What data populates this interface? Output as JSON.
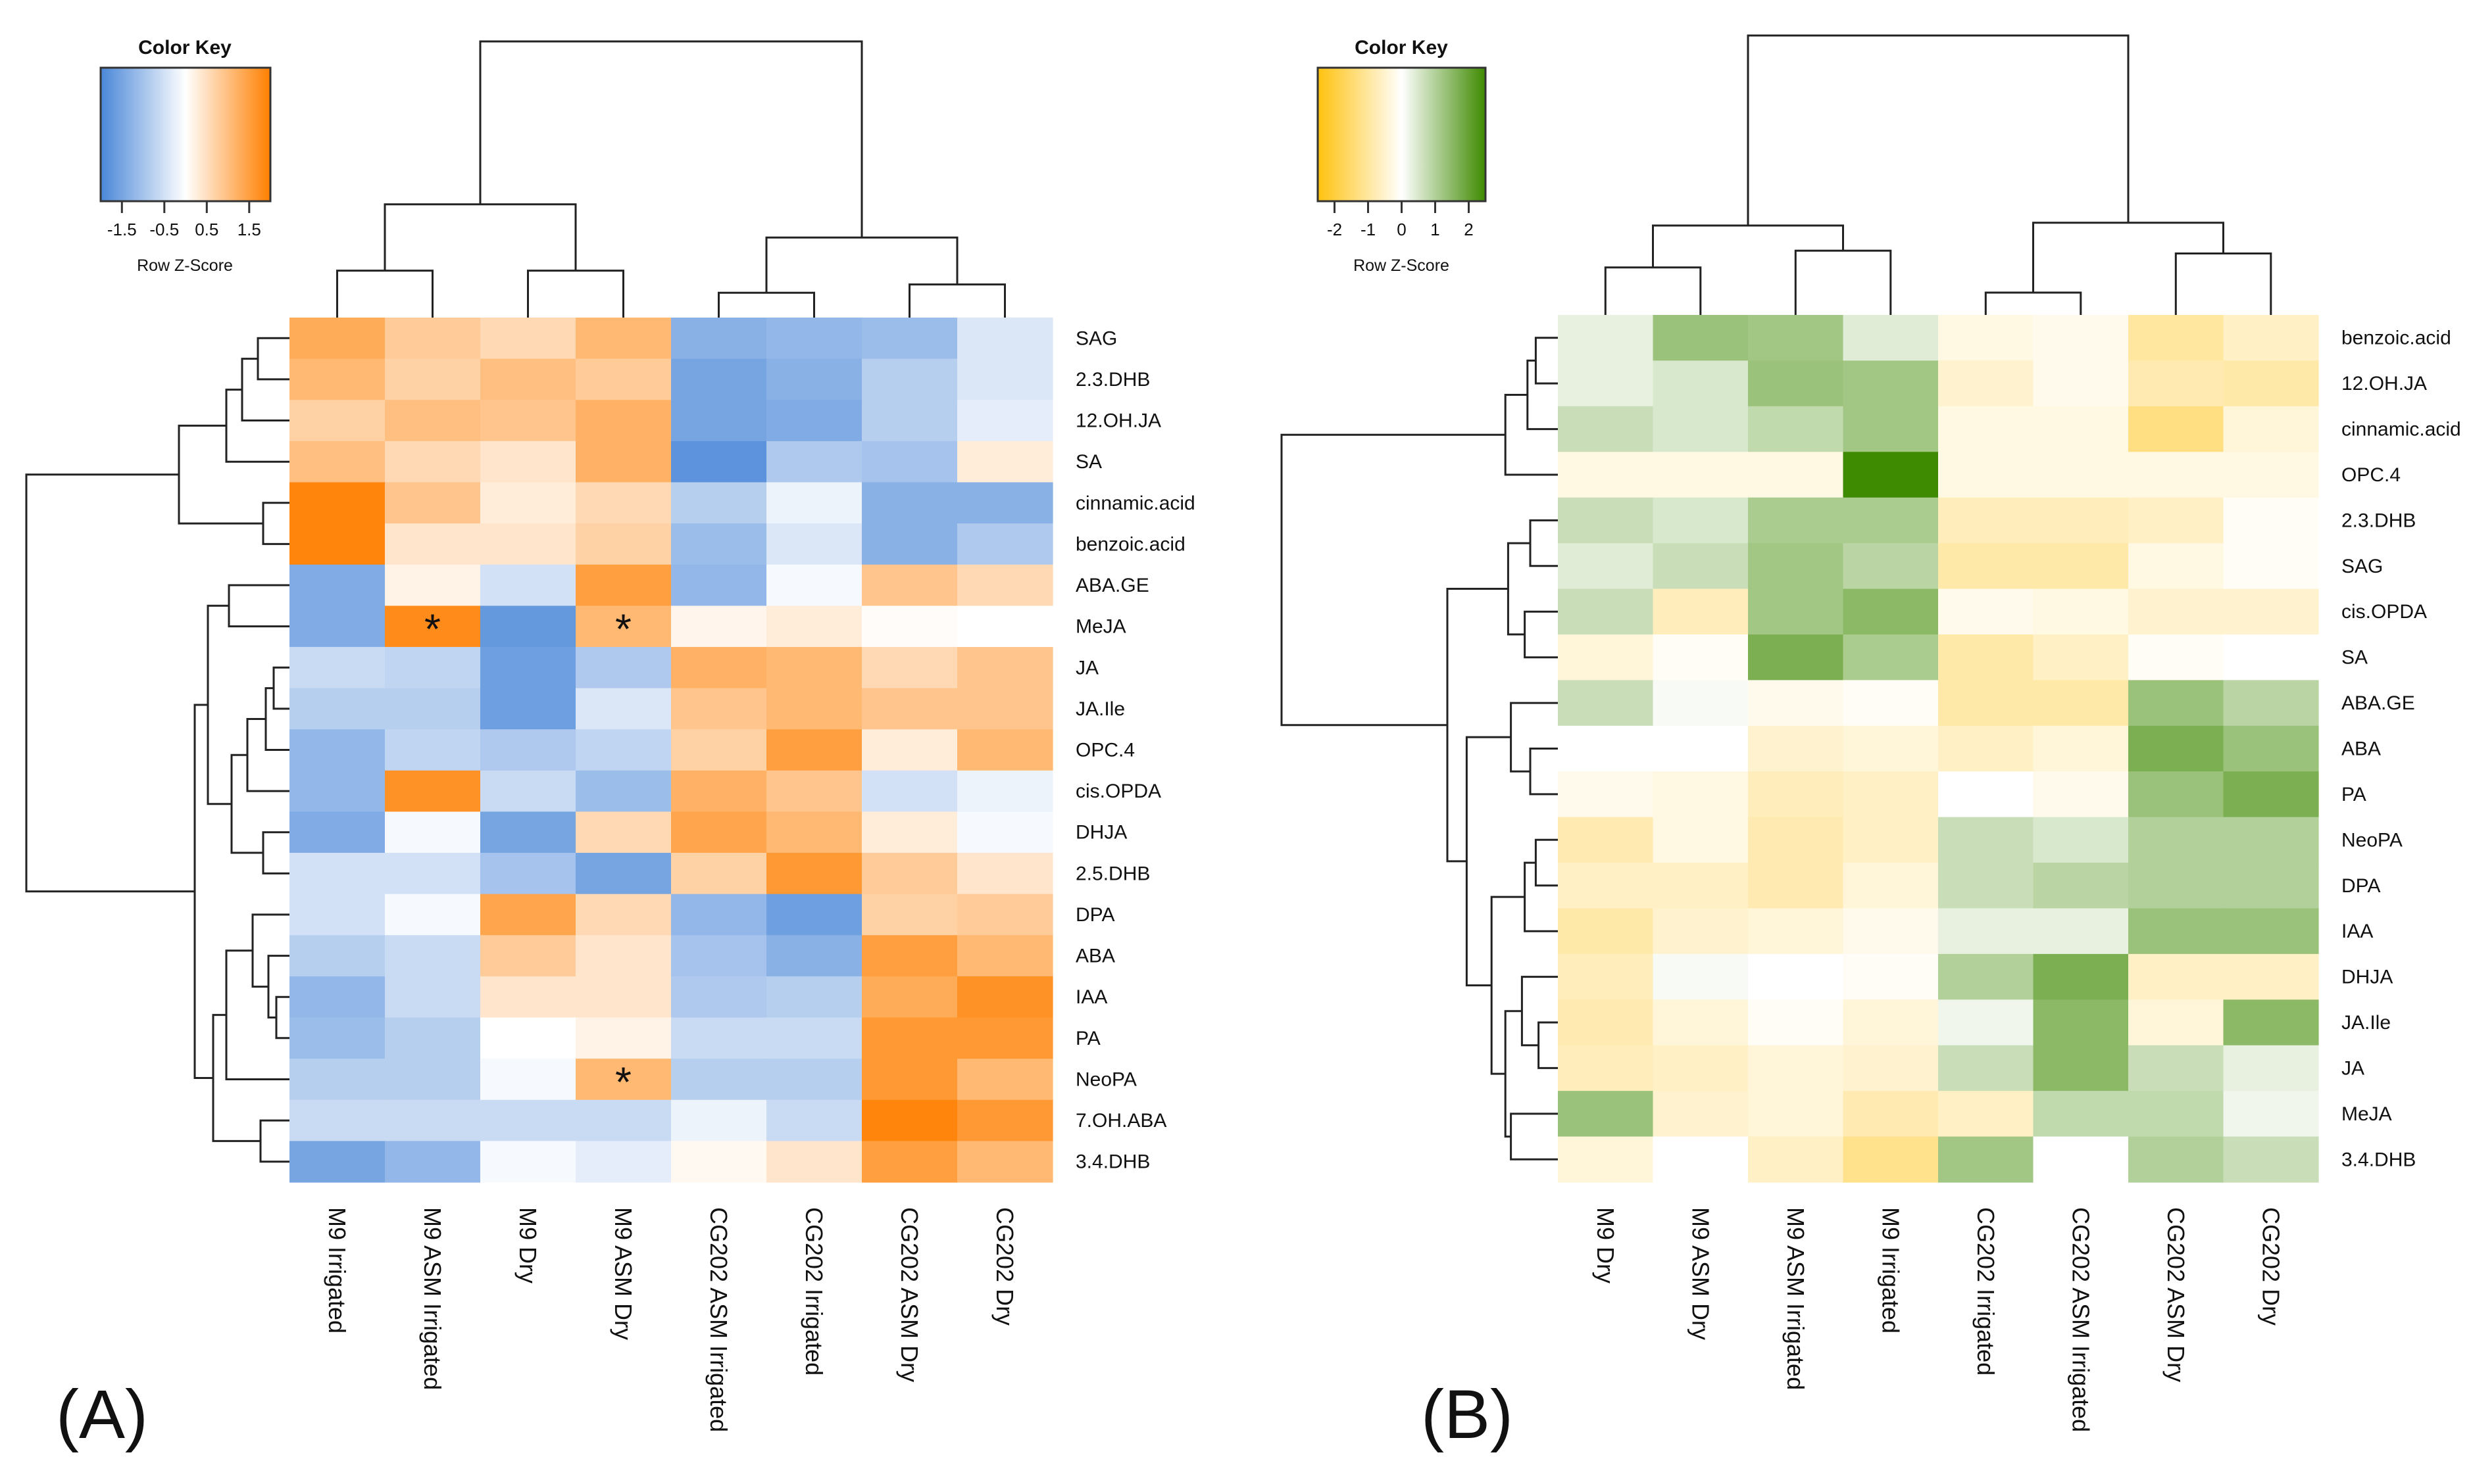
{
  "figure": {
    "panel_labels": [
      "(A)",
      "(B)"
    ]
  },
  "chart_data": [
    {
      "type": "heatmap",
      "panel": "(A)",
      "color_key": {
        "title": "Color Key",
        "label": "Row Z-Score",
        "ticks": [
          "-1.5",
          "-0.5",
          "0.5",
          "1.5"
        ],
        "range": [
          -2,
          2
        ],
        "colors": {
          "low": "#4a87d8",
          "mid": "#ffffff",
          "high": "#ff7f00"
        }
      },
      "columns": [
        "M9 Irrigated",
        "M9 ASM Irrigated",
        "M9 Dry",
        "M9 ASM Dry",
        "CG202 ASM Irrigated",
        "CG202 Irrigated",
        "CG202 ASM Dry",
        "CG202 Dry"
      ],
      "rows": [
        "SAG",
        "2.3.DHB",
        "12.OH.JA",
        "SA",
        "cinnamic.acid",
        "benzoic.acid",
        "ABA.GE",
        "MeJA",
        "JA",
        "JA.Ile",
        "OPC.4",
        "cis.OPDA",
        "DHJA",
        "2.5.DHB",
        "DPA",
        "ABA",
        "IAA",
        "PA",
        "NeoPA",
        "7.OH.ABA",
        "3.4.DHB"
      ],
      "values": [
        [
          1.3,
          0.8,
          0.6,
          1.1,
          -1.3,
          -1.2,
          -1.1,
          -0.4
        ],
        [
          1.1,
          0.7,
          1.0,
          0.8,
          -1.5,
          -1.3,
          -0.8,
          -0.4
        ],
        [
          0.7,
          1.0,
          0.9,
          1.2,
          -1.5,
          -1.4,
          -0.8,
          -0.3
        ],
        [
          1.0,
          0.6,
          0.4,
          1.2,
          -1.8,
          -0.9,
          -1.0,
          0.3
        ],
        [
          1.9,
          0.9,
          0.3,
          0.6,
          -0.8,
          -0.2,
          -1.3,
          -1.3
        ],
        [
          1.9,
          0.4,
          0.4,
          0.7,
          -1.1,
          -0.4,
          -1.3,
          -0.9
        ],
        [
          -1.4,
          0.2,
          -0.5,
          1.5,
          -1.2,
          -0.1,
          0.9,
          0.6
        ],
        [
          -1.4,
          1.8,
          -1.7,
          1.1,
          0.15,
          0.3,
          0.05,
          0.0
        ],
        [
          -0.6,
          -0.7,
          -1.6,
          -0.9,
          1.2,
          1.1,
          0.6,
          0.9
        ],
        [
          -0.8,
          -0.8,
          -1.6,
          -0.4,
          0.9,
          1.1,
          0.9,
          0.9
        ],
        [
          -1.2,
          -0.7,
          -0.9,
          -0.7,
          0.7,
          1.5,
          0.3,
          1.1
        ],
        [
          -1.2,
          1.7,
          -0.6,
          -1.1,
          1.2,
          0.9,
          -0.5,
          -0.2
        ],
        [
          -1.4,
          -0.1,
          -1.5,
          0.6,
          1.4,
          1.1,
          0.3,
          -0.1
        ],
        [
          -0.5,
          -0.5,
          -1.0,
          -1.5,
          0.7,
          1.6,
          0.8,
          0.4
        ],
        [
          -0.5,
          -0.1,
          1.4,
          0.6,
          -1.2,
          -1.6,
          0.7,
          0.8
        ],
        [
          -0.8,
          -0.6,
          0.8,
          0.4,
          -1.0,
          -1.3,
          1.5,
          1.1
        ],
        [
          -1.2,
          -0.6,
          0.4,
          0.4,
          -0.9,
          -0.8,
          1.3,
          1.7
        ],
        [
          -1.1,
          -0.8,
          0.0,
          0.2,
          -0.6,
          -0.6,
          1.6,
          1.6
        ],
        [
          -0.8,
          -0.8,
          -0.1,
          1.1,
          -0.8,
          -0.8,
          1.6,
          1.1
        ],
        [
          -0.6,
          -0.6,
          -0.6,
          -0.6,
          -0.2,
          -0.6,
          1.9,
          1.6
        ],
        [
          -1.5,
          -1.2,
          -0.1,
          -0.3,
          0.1,
          0.4,
          1.5,
          1.1
        ]
      ],
      "annotations": [
        {
          "row": "MeJA",
          "column": "M9 ASM Irrigated",
          "text": "*"
        },
        {
          "row": "MeJA",
          "column": "M9 ASM Dry",
          "text": "*"
        },
        {
          "row": "NeoPA",
          "column": "M9 ASM Dry",
          "text": "*"
        }
      ]
    },
    {
      "type": "heatmap",
      "panel": "(B)",
      "color_key": {
        "title": "Color Key",
        "label": "Row Z-Score",
        "ticks": [
          "-2",
          "-1",
          "0",
          "1",
          "2"
        ],
        "range": [
          -2.5,
          2.5
        ],
        "colors": {
          "low": "#ffc20e",
          "mid": "#ffffff",
          "high": "#3e8a00"
        }
      },
      "columns": [
        "M9 Dry",
        "M9 ASM Dry",
        "M9 ASM Irrigated",
        "M9 Irrigated",
        "CG202 Irrigated",
        "CG202 ASM Irrigated",
        "CG202 ASM Dry",
        "CG202 Dry"
      ],
      "rows": [
        "benzoic.acid",
        "12.OH.JA",
        "cinnamic.acid",
        "OPC.4",
        "2.3.DHB",
        "SAG",
        "cis.OPDA",
        "SA",
        "ABA.GE",
        "ABA",
        "PA",
        "NeoPA",
        "DPA",
        "IAA",
        "DHJA",
        "JA.Ile",
        "JA",
        "MeJA",
        "3.4.DHB"
      ],
      "values": [
        [
          0.3,
          1.3,
          1.2,
          0.4,
          -0.3,
          -0.2,
          -1.0,
          -0.6
        ],
        [
          0.3,
          0.5,
          1.3,
          1.2,
          -0.5,
          -0.2,
          -0.8,
          -0.9
        ],
        [
          0.7,
          0.5,
          0.8,
          1.2,
          -0.3,
          -0.3,
          -1.3,
          -0.4
        ],
        [
          -0.3,
          -0.3,
          -0.3,
          2.5,
          -0.3,
          -0.3,
          -0.3,
          -0.3
        ],
        [
          0.7,
          0.5,
          1.1,
          1.1,
          -0.7,
          -0.7,
          -0.6,
          -0.1
        ],
        [
          0.4,
          0.7,
          1.2,
          0.9,
          -0.9,
          -0.9,
          -0.3,
          -0.1
        ],
        [
          0.7,
          -0.7,
          1.2,
          1.5,
          -0.2,
          -0.3,
          -0.5,
          -0.5
        ],
        [
          -0.4,
          -0.1,
          1.7,
          1.1,
          -0.9,
          -0.6,
          -0.1,
          0.0
        ],
        [
          0.7,
          0.1,
          -0.2,
          -0.1,
          -0.9,
          -0.9,
          1.3,
          0.9
        ],
        [
          0.0,
          0.0,
          -0.5,
          -0.4,
          -0.6,
          -0.4,
          1.7,
          1.3
        ],
        [
          -0.2,
          -0.3,
          -0.7,
          -0.6,
          0.0,
          -0.2,
          1.3,
          1.7
        ],
        [
          -0.8,
          -0.3,
          -0.8,
          -0.6,
          0.7,
          0.5,
          1.0,
          1.0
        ],
        [
          -0.6,
          -0.6,
          -0.8,
          -0.4,
          0.7,
          0.9,
          1.0,
          1.0
        ],
        [
          -0.9,
          -0.5,
          -0.4,
          -0.2,
          0.3,
          0.3,
          1.3,
          1.3
        ],
        [
          -0.7,
          0.1,
          0.0,
          -0.1,
          1.0,
          1.7,
          -0.6,
          -0.6
        ],
        [
          -0.8,
          -0.4,
          -0.1,
          -0.4,
          0.2,
          1.5,
          -0.4,
          1.5
        ],
        [
          -0.7,
          -0.6,
          -0.4,
          -0.5,
          0.7,
          1.5,
          0.7,
          0.3
        ],
        [
          1.3,
          -0.5,
          -0.4,
          -0.8,
          -0.6,
          0.8,
          0.8,
          0.2
        ],
        [
          -0.4,
          0.0,
          -0.6,
          -1.2,
          1.2,
          0.0,
          1.0,
          0.7
        ]
      ]
    }
  ]
}
